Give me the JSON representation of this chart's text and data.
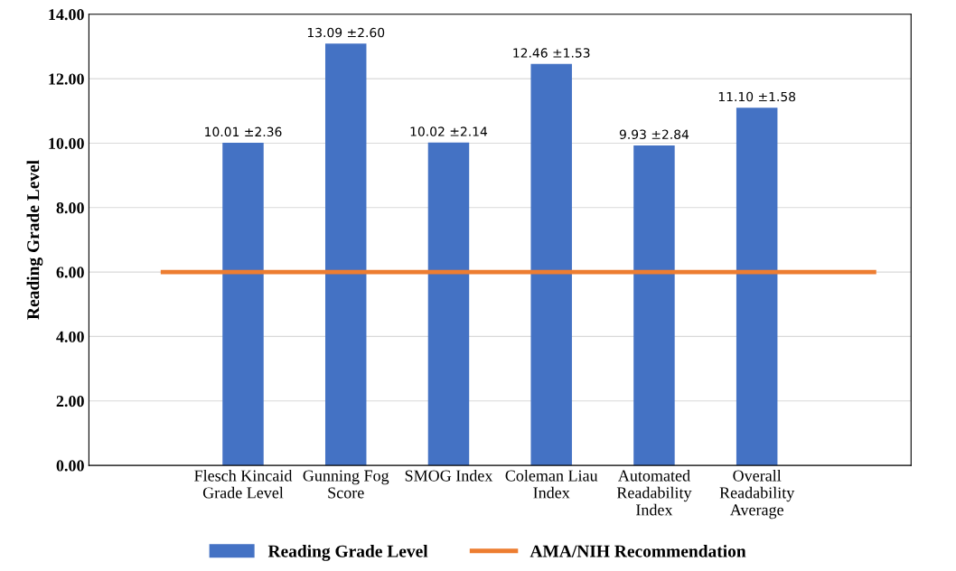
{
  "chart_data": {
    "type": "bar",
    "ylabel": "Reading Grade Level",
    "categories": [
      null,
      "Flesch Kincaid\nGrade Level",
      "Gunning Fog\nScore",
      "SMOG Index",
      "Coleman Liau\nIndex",
      "Automated\nReadability\nIndex",
      "Overall\nReadability\nAverage",
      null
    ],
    "series": [
      {
        "name": "Reading Grade Level",
        "color": "#4472c4",
        "values": [
          null,
          10.01,
          13.09,
          10.02,
          12.46,
          9.93,
          11.1,
          null
        ],
        "value_labels": [
          null,
          "10.01 ±2.36",
          "13.09 ±2.60",
          "10.02 ±2.14",
          "12.46 ±1.53",
          "9.93 ±2.84",
          "11.10 ±1.58",
          null
        ]
      }
    ],
    "ref_lines": [
      {
        "axis": "y",
        "value": 6,
        "label": "AMA/NIH Recommendation",
        "color": "#ed7d31"
      }
    ],
    "ylim": [
      0,
      14
    ],
    "yticks": [
      {
        "value": 0,
        "label": "0.00"
      },
      {
        "value": 2,
        "label": "2.00"
      },
      {
        "value": 4,
        "label": "4.00"
      },
      {
        "value": 6,
        "label": "6.00"
      },
      {
        "value": 8,
        "label": "8.00"
      },
      {
        "value": 10,
        "label": "10.00"
      },
      {
        "value": 12,
        "label": "12.00"
      },
      {
        "value": 14,
        "label": "14.00"
      }
    ],
    "grid": "y",
    "legend": "bottom"
  }
}
